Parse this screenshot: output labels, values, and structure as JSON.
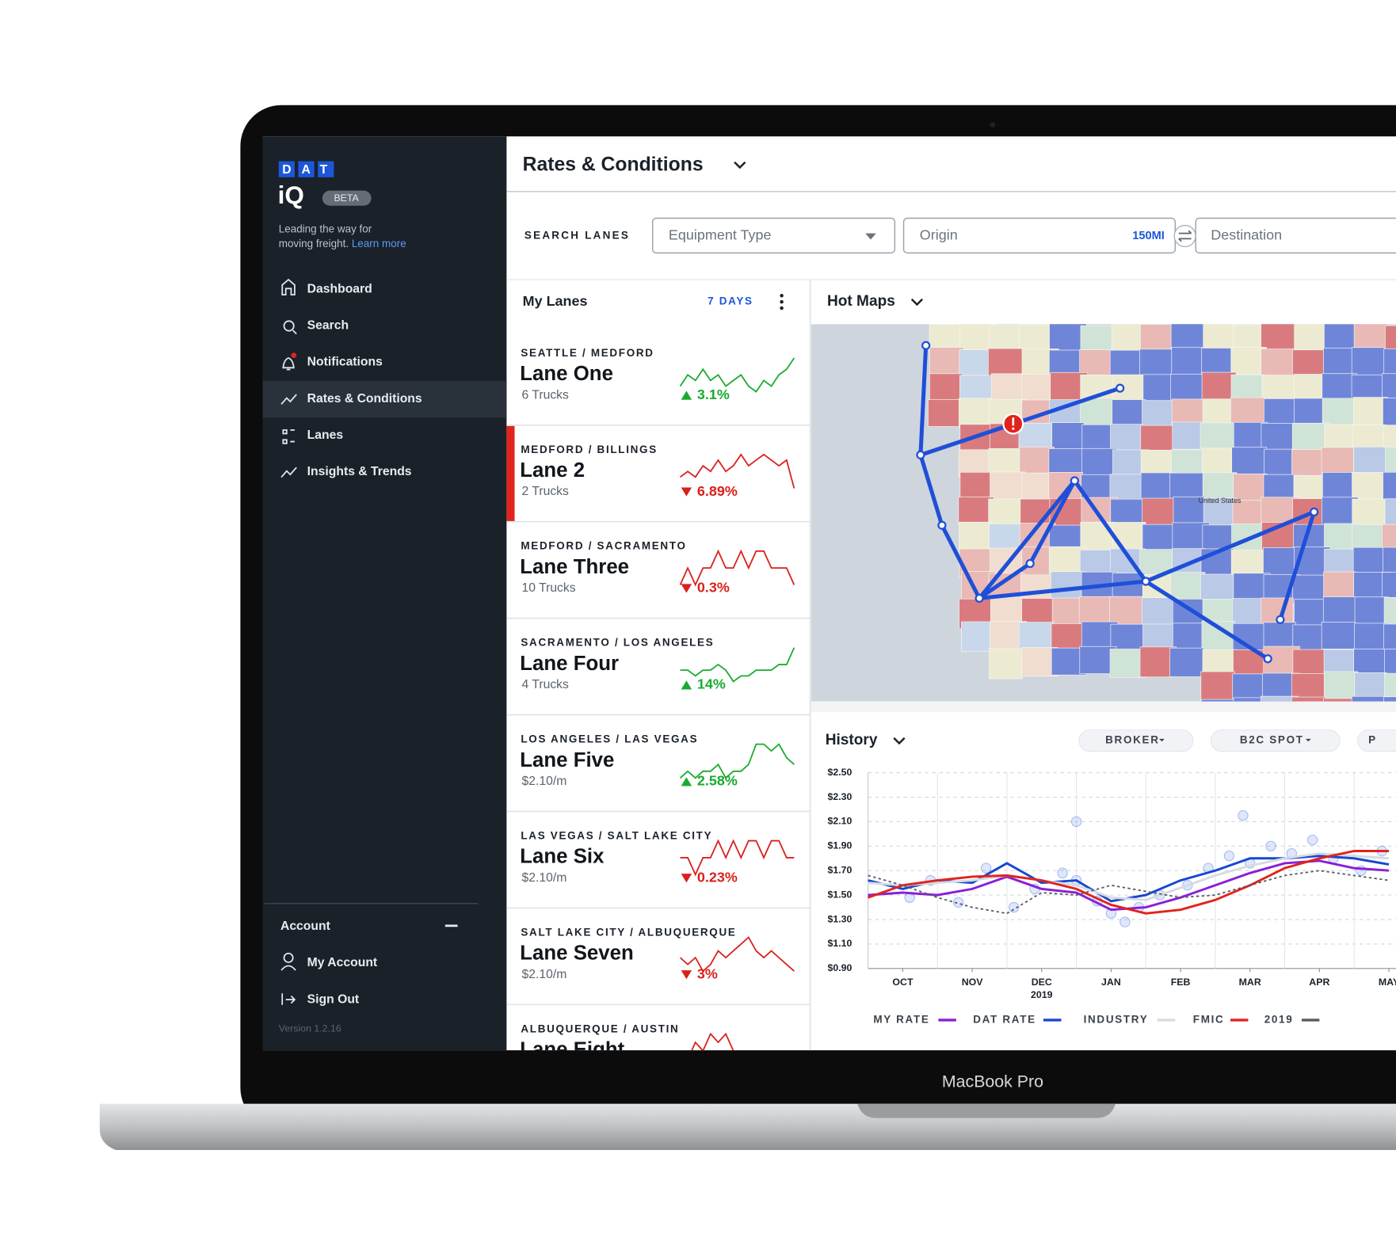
{
  "brand": {
    "logo": "DAT",
    "product": "iQ",
    "badge": "BETA",
    "tagline": [
      "Leading the way for",
      "moving freight."
    ],
    "learn_more": "Learn more"
  },
  "nav": [
    {
      "label": "Dashboard",
      "active": false
    },
    {
      "label": "Search",
      "active": false
    },
    {
      "label": "Notifications",
      "active": false
    },
    {
      "label": "Rates & Conditions",
      "active": true
    },
    {
      "label": "Lanes",
      "active": false
    },
    {
      "label": "Insights & Trends",
      "active": false
    }
  ],
  "account": {
    "title": "Account",
    "items": [
      "My Account",
      "Sign Out"
    ],
    "version": "Version 1.2.16"
  },
  "header": {
    "title": "Rates & Conditions"
  },
  "search": {
    "label": "SEARCH LANES",
    "equipment": "Equipment Type",
    "origin": "Origin",
    "radius": "150MI",
    "destination": "Destination"
  },
  "my_lanes": {
    "title": "My Lanes",
    "period": "7 DAYS",
    "lanes": [
      {
        "route": "SEATTLE / MEDFORD",
        "name": "Lane One",
        "detail": "6 Trucks",
        "change": "3.1%",
        "trend": "up",
        "selected": false,
        "spark": [
          3,
          5,
          4,
          6,
          4,
          5,
          3,
          4,
          5,
          3,
          2,
          4,
          3,
          5,
          6,
          8
        ]
      },
      {
        "route": "MEDFORD / BILLINGS",
        "name": "Lane 2",
        "detail": "2 Trucks",
        "change": "6.89%",
        "trend": "down",
        "selected": true,
        "spark": [
          4,
          5,
          4,
          6,
          5,
          7,
          5,
          6,
          8,
          6,
          7,
          8,
          7,
          6,
          7,
          2
        ]
      },
      {
        "route": "MEDFORD / SACRAMENTO",
        "name": "Lane Three",
        "detail": "10 Trucks",
        "change": "0.3%",
        "trend": "down",
        "selected": false,
        "spark": [
          5,
          6,
          5,
          6,
          6,
          7,
          6,
          6,
          7,
          6,
          7,
          7,
          6,
          6,
          6,
          5
        ]
      },
      {
        "route": "SACRAMENTO / LOS ANGELES",
        "name": "Lane Four",
        "detail": "4 Trucks",
        "change": "14%",
        "trend": "up",
        "selected": false,
        "spark": [
          6,
          6,
          5,
          6,
          6,
          7,
          6,
          4,
          5,
          5,
          6,
          6,
          6,
          7,
          7,
          10
        ]
      },
      {
        "route": "LOS ANGELES / LAS VEGAS",
        "name": "Lane Five",
        "detail": "$2.10/m",
        "change": "2.58%",
        "trend": "up",
        "selected": false,
        "spark": [
          4,
          5,
          4,
          5,
          5,
          6,
          4,
          5,
          5,
          6,
          9,
          9,
          8,
          9,
          7,
          6
        ]
      },
      {
        "route": "LAS VEGAS / SALT LAKE CITY",
        "name": "Lane Six",
        "detail": "$2.10/m",
        "change": "0.23%",
        "trend": "down",
        "selected": false,
        "spark": [
          5,
          5,
          4,
          5,
          5,
          6,
          5,
          6,
          5,
          6,
          6,
          5,
          6,
          6,
          5,
          5
        ]
      },
      {
        "route": "SALT LAKE CITY / ALBUQUERQUE",
        "name": "Lane Seven",
        "detail": "$2.10/m",
        "change": "3%",
        "trend": "down",
        "selected": false,
        "spark": [
          6,
          5,
          6,
          4,
          5,
          7,
          6,
          7,
          8,
          9,
          7,
          6,
          7,
          6,
          5,
          4
        ]
      },
      {
        "route": "ALBUQUERQUE / AUSTIN",
        "name": "Lane Eight",
        "trend": "down",
        "selected": false,
        "spark": [
          3,
          4,
          6,
          5,
          7,
          6,
          7,
          5,
          4
        ]
      }
    ]
  },
  "hot_maps": {
    "title": "Hot Maps",
    "label": "United States"
  },
  "history": {
    "title": "History",
    "filters": [
      "BROKER",
      "B2C SPOT",
      "P"
    ],
    "chart_data": {
      "type": "line",
      "x": [
        -0.5,
        0,
        0.5,
        1,
        1.5,
        2,
        2.5,
        3,
        3.5,
        4,
        4.5,
        5,
        5.5,
        6,
        6.5,
        7
      ],
      "xlim": [
        -0.5,
        7.5
      ],
      "xticks": [
        {
          "value": 0,
          "label": "OCT"
        },
        {
          "value": 1,
          "label": "NOV"
        },
        {
          "value": 2,
          "label": "DEC"
        },
        {
          "value": 3,
          "label": "JAN"
        },
        {
          "value": 4,
          "label": "FEB"
        },
        {
          "value": 5,
          "label": "MAR"
        },
        {
          "value": 6,
          "label": "APR"
        },
        {
          "value": 7,
          "label": "MAY"
        }
      ],
      "annotations": [
        {
          "x": 2,
          "text": "2019"
        }
      ],
      "ylim": [
        0.9,
        2.5
      ],
      "yticks": [
        {
          "value": 2.5,
          "label": "$2.50"
        },
        {
          "value": 2.3,
          "label": "$2.30"
        },
        {
          "value": 2.1,
          "label": "$2.10"
        },
        {
          "value": 1.9,
          "label": "$1.90"
        },
        {
          "value": 1.7,
          "label": "$1.70"
        },
        {
          "value": 1.5,
          "label": "$1.50"
        },
        {
          "value": 1.3,
          "label": "$1.30"
        },
        {
          "value": 1.1,
          "label": "$1.10"
        },
        {
          "value": 0.9,
          "label": "$0.90"
        }
      ],
      "grid": true,
      "series": [
        {
          "name": "MY RATE",
          "color": "#8a1fd6",
          "values": [
            1.5,
            1.52,
            1.5,
            1.55,
            1.65,
            1.55,
            1.52,
            1.38,
            1.4,
            1.48,
            1.58,
            1.68,
            1.76,
            1.78,
            1.72,
            1.7
          ]
        },
        {
          "name": "DAT RATE",
          "color": "#1746d1",
          "values": [
            1.62,
            1.55,
            1.62,
            1.6,
            1.76,
            1.6,
            1.62,
            1.45,
            1.5,
            1.62,
            1.7,
            1.8,
            1.8,
            1.82,
            1.8,
            1.75
          ]
        },
        {
          "name": "INDUSTRY",
          "color": "#d6dbe1",
          "values": [
            1.6,
            1.58,
            1.6,
            1.62,
            1.66,
            1.62,
            1.58,
            1.48,
            1.46,
            1.56,
            1.66,
            1.74,
            1.8,
            1.84,
            1.82,
            1.8
          ]
        },
        {
          "name": "FMIC",
          "color": "#e0241c",
          "values": [
            1.48,
            1.58,
            1.62,
            1.65,
            1.66,
            1.62,
            1.55,
            1.42,
            1.35,
            1.38,
            1.46,
            1.58,
            1.72,
            1.8,
            1.86,
            1.86
          ]
        },
        {
          "name": "2019",
          "color": "#555b63",
          "dashed": true,
          "values": [
            1.66,
            1.58,
            1.48,
            1.4,
            1.35,
            1.52,
            1.5,
            1.58,
            1.53,
            1.48,
            1.5,
            1.58,
            1.66,
            1.7,
            1.66,
            1.62
          ]
        }
      ],
      "points": {
        "color": "#4f7be8",
        "x": [
          0.1,
          0.4,
          0.8,
          1.2,
          1.6,
          1.9,
          2.3,
          2.5,
          2.8,
          3.0,
          3.2,
          3.4,
          3.7,
          4.1,
          4.4,
          4.7,
          5.0,
          5.3,
          5.6,
          5.9,
          6.2,
          6.6,
          6.9,
          2.5,
          4.9
        ],
        "y": [
          1.48,
          1.62,
          1.44,
          1.72,
          1.4,
          1.55,
          1.68,
          1.62,
          1.45,
          1.35,
          1.28,
          1.4,
          1.5,
          1.58,
          1.72,
          1.82,
          1.76,
          1.9,
          1.84,
          1.95,
          1.8,
          1.7,
          1.86,
          2.1,
          2.15
        ]
      }
    }
  },
  "device": "MacBook Pro"
}
